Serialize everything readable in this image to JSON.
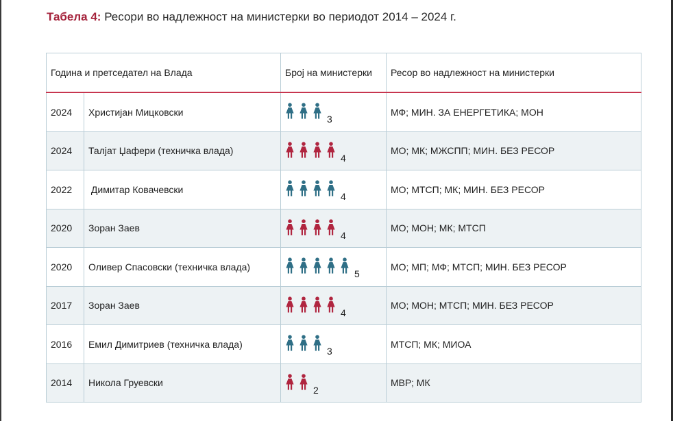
{
  "caption": {
    "label": "Табела 4:",
    "text": "Ресори во надлежност на министерки во периодот 2014 – 2024 г."
  },
  "colors": {
    "blue_figure": "#2f6f86",
    "red_figure": "#b0253f",
    "header_rule": "#c7364f",
    "label": "#a5233c"
  },
  "table": {
    "headers": {
      "year_pm": "Година и претседател на Влада",
      "count": "Број на министерки",
      "resorts": "Ресор во надлежност на министерки"
    },
    "rows": [
      {
        "year": "2024",
        "pm": "Христијан Мицковски",
        "count": 3,
        "count_label": "3",
        "figure_color": "blue",
        "resorts": "МФ; МИН. ЗА ЕНЕРГЕТИКА; МОН"
      },
      {
        "year": "2024",
        "pm": "Талјат Џафери (техничка влада)",
        "count": 4,
        "count_label": "4",
        "figure_color": "red",
        "resorts": "МО; МК; МЖСПП; МИН. БЕЗ РЕСОР"
      },
      {
        "year": "2022",
        "pm": " Димитар Ковачевски",
        "count": 4,
        "count_label": "4",
        "figure_color": "blue",
        "resorts": "МО; МТСП; МК; МИН. БЕЗ РЕСОР"
      },
      {
        "year": "2020",
        "pm": "Зоран Заев",
        "count": 4,
        "count_label": "4",
        "figure_color": "red",
        "resorts": "МО; МОН; МК; МТСП"
      },
      {
        "year": "2020",
        "pm": "Оливер Спасовски (техничка влада)",
        "count": 5,
        "count_label": "5",
        "figure_color": "blue",
        "resorts": "МО; МП; МФ; МТСП; МИН. БЕЗ РЕСОР"
      },
      {
        "year": "2017",
        "pm": "Зоран Заев",
        "count": 4,
        "count_label": "4",
        "figure_color": "red",
        "resorts": "МО; МОН; МТСП; МИН. БЕЗ РЕСОР"
      },
      {
        "year": "2016",
        "pm": "Емил Димитриев (техничка влада)",
        "count": 3,
        "count_label": "3",
        "figure_color": "blue",
        "resorts": "МТСП; МК; МИОА"
      },
      {
        "year": "2014",
        "pm": "Никола Груевски",
        "count": 2,
        "count_label": "2",
        "figure_color": "red",
        "resorts": "МВР; МК"
      }
    ]
  }
}
